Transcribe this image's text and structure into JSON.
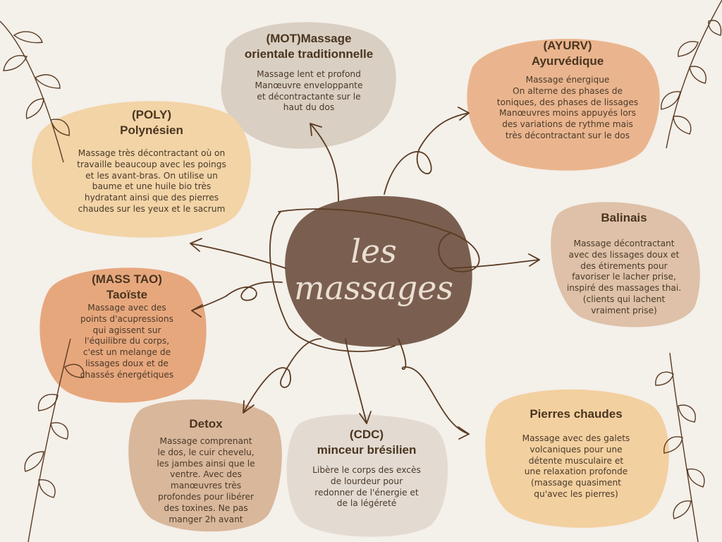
{
  "center": {
    "line1": "les",
    "line2": "massages"
  },
  "nodes": {
    "mot": {
      "title_line1": "(MOT)Massage",
      "title_line2": "orientale traditionnelle",
      "desc": [
        "Massage lent et profond",
        "Manœuvre enveloppante",
        "et décontractante sur le",
        "haut du dos"
      ],
      "color": "#d9cfc2"
    },
    "ayurv": {
      "title_line1": "(AYURV)",
      "title_line2": "Ayurvédique",
      "desc": [
        "Massage énergique",
        "On alterne des phases de",
        "toniques, des phases de lissages",
        "Manœuvres moins appuyés lors",
        "des variations de rythme mais",
        "très décontractant sur le dos"
      ],
      "color": "#eab58e"
    },
    "poly": {
      "title_line1": "(POLY)",
      "title_line2": "Polynésien",
      "desc": [
        "Massage très décontractant où on",
        "travaille beaucoup avec les poings",
        "et les avant-bras. On utilise un",
        "baume et une huile bio très",
        "hydratant ainsi que des pierres",
        "chaudes sur les yeux et le sacrum"
      ],
      "color": "#f2d4a7"
    },
    "balinais": {
      "title_line1": "Balinais",
      "desc": [
        "Massage décontractant",
        "avec des lissages doux et",
        "des étirements pour",
        "favoriser le lacher prise,",
        "inspiré des massages thai.",
        "(clients qui lachent",
        "vraiment prise)"
      ],
      "color": "#dec1a8"
    },
    "tao": {
      "title_line1": "(MASS TAO)",
      "title_line2": "Taoïste",
      "desc": [
        "Massage avec des",
        "points d'acupressions",
        "qui agissent sur",
        "l'équilibre du corps,",
        "c'est un melange de",
        "lissages doux et de",
        "chassés énergétiques"
      ],
      "color": "#e7a77d"
    },
    "detox": {
      "title_line1": "Detox",
      "desc": [
        "Massage comprenant",
        "le dos, le cuir chevelu,",
        "les jambes ainsi que le",
        "ventre. Avec des",
        "manœuvres très",
        "profondes pour libérer",
        "des toxines. Ne pas",
        "manger 2h avant"
      ],
      "color": "#d9b79b"
    },
    "cdc": {
      "title_line1": "(CDC)",
      "title_line2": "minceur brésilien",
      "desc": [
        "Libère le corps des excès",
        "de lourdeur pour",
        "redonner de l'énergie et",
        "de la légéreté"
      ],
      "color": "#e3dbd2"
    },
    "pierres": {
      "title_line1": "Pierres chaudes",
      "desc": [
        "Massage avec des galets",
        "volcaniques pour une",
        "détente musculaire et",
        "une relaxation profonde",
        "(massage quasiment",
        "qu'avec les pierres)"
      ],
      "color": "#f3d0a0"
    }
  },
  "colors": {
    "center": "#7a5f50",
    "arrow": "#5a3b22",
    "leaf": "#5a3b22",
    "background": "#f4f0ea"
  }
}
